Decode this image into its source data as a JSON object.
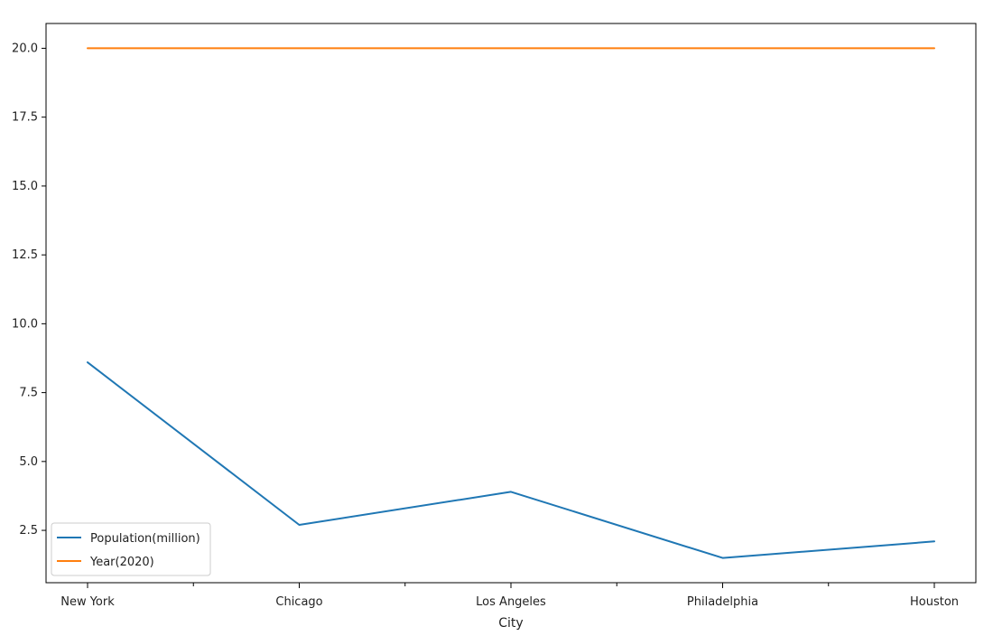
{
  "chart_data": {
    "type": "line",
    "title": "",
    "xlabel": "City",
    "ylabel": "",
    "categories": [
      "New York",
      "Chicago",
      "Los Angeles",
      "Philadelphia",
      "Houston"
    ],
    "series": [
      {
        "name": "Population(million)",
        "color": "#1f77b4",
        "values": [
          8.6,
          2.7,
          3.9,
          1.5,
          2.1
        ]
      },
      {
        "name": "Year(2020)",
        "color": "#ff7f0e",
        "values": [
          20.0,
          20.0,
          20.0,
          20.0,
          20.0
        ]
      }
    ],
    "ylim": [
      0.6,
      20.9
    ],
    "yticks": [
      "2.5",
      "5.0",
      "7.5",
      "10.0",
      "12.5",
      "15.0",
      "17.5",
      "20.0"
    ],
    "grid": false,
    "legend_position": "bottom-left"
  }
}
